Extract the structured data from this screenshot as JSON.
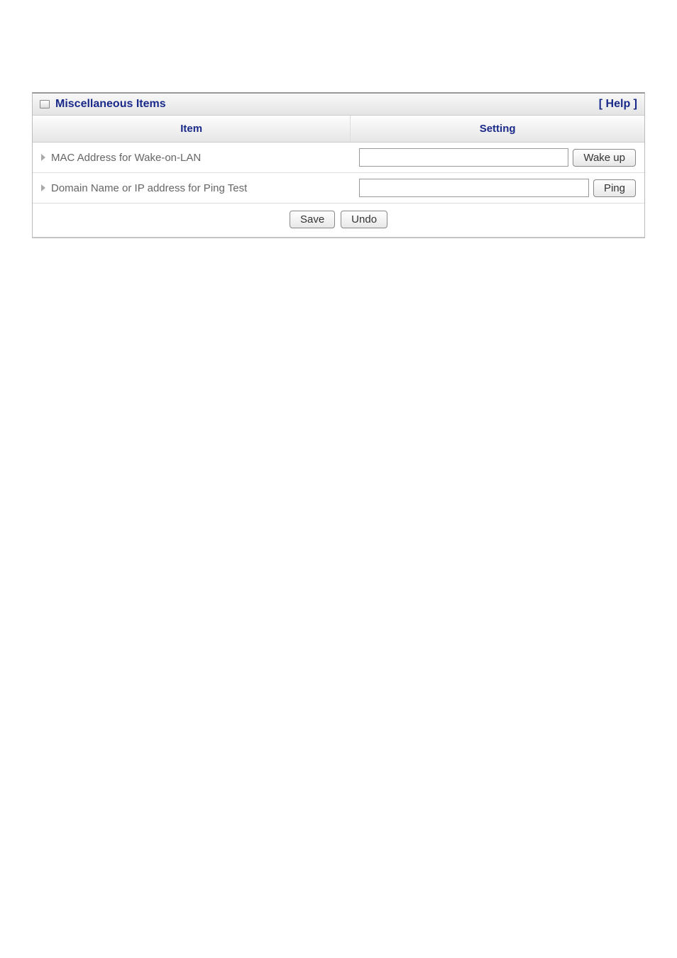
{
  "panel": {
    "title": "Miscellaneous Items",
    "help_label": "[ Help ]"
  },
  "columns": {
    "item": "Item",
    "setting": "Setting"
  },
  "rows": [
    {
      "label": "MAC Address for Wake-on-LAN",
      "value": "",
      "button_label": "Wake up"
    },
    {
      "label": "Domain Name or IP address for Ping Test",
      "value": "",
      "button_label": "Ping"
    }
  ],
  "footer": {
    "save_label": "Save",
    "undo_label": "Undo"
  },
  "colors": {
    "header_text": "#1a2a8a",
    "row_text": "#666666",
    "border": "#bbbbbb"
  }
}
